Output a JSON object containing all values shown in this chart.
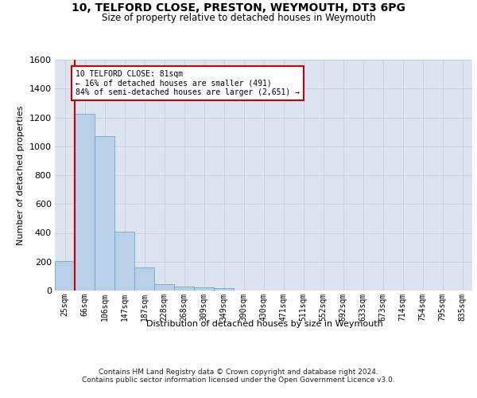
{
  "title": "10, TELFORD CLOSE, PRESTON, WEYMOUTH, DT3 6PG",
  "subtitle": "Size of property relative to detached houses in Weymouth",
  "xlabel": "Distribution of detached houses by size in Weymouth",
  "ylabel": "Number of detached properties",
  "categories": [
    "25sqm",
    "66sqm",
    "106sqm",
    "147sqm",
    "187sqm",
    "228sqm",
    "268sqm",
    "309sqm",
    "349sqm",
    "390sqm",
    "430sqm",
    "471sqm",
    "511sqm",
    "552sqm",
    "592sqm",
    "633sqm",
    "673sqm",
    "714sqm",
    "754sqm",
    "795sqm",
    "835sqm"
  ],
  "values": [
    205,
    1225,
    1070,
    410,
    160,
    45,
    28,
    20,
    15,
    0,
    0,
    0,
    0,
    0,
    0,
    0,
    0,
    0,
    0,
    0,
    0
  ],
  "bar_color": "#b8cfe8",
  "bar_edge_color": "#6699cc",
  "annotation_box_text": "10 TELFORD CLOSE: 81sqm\n← 16% of detached houses are smaller (491)\n84% of semi-detached houses are larger (2,651) →",
  "annotation_box_color": "#ffffff",
  "annotation_box_edge_color": "#cc0000",
  "vline_x": 0.5,
  "vline_color": "#cc0000",
  "ylim": [
    0,
    1600
  ],
  "yticks": [
    0,
    200,
    400,
    600,
    800,
    1000,
    1200,
    1400,
    1600
  ],
  "grid_color": "#c8d0dc",
  "background_color": "#dce4f0",
  "footer_line1": "Contains HM Land Registry data © Crown copyright and database right 2024.",
  "footer_line2": "Contains public sector information licensed under the Open Government Licence v3.0."
}
